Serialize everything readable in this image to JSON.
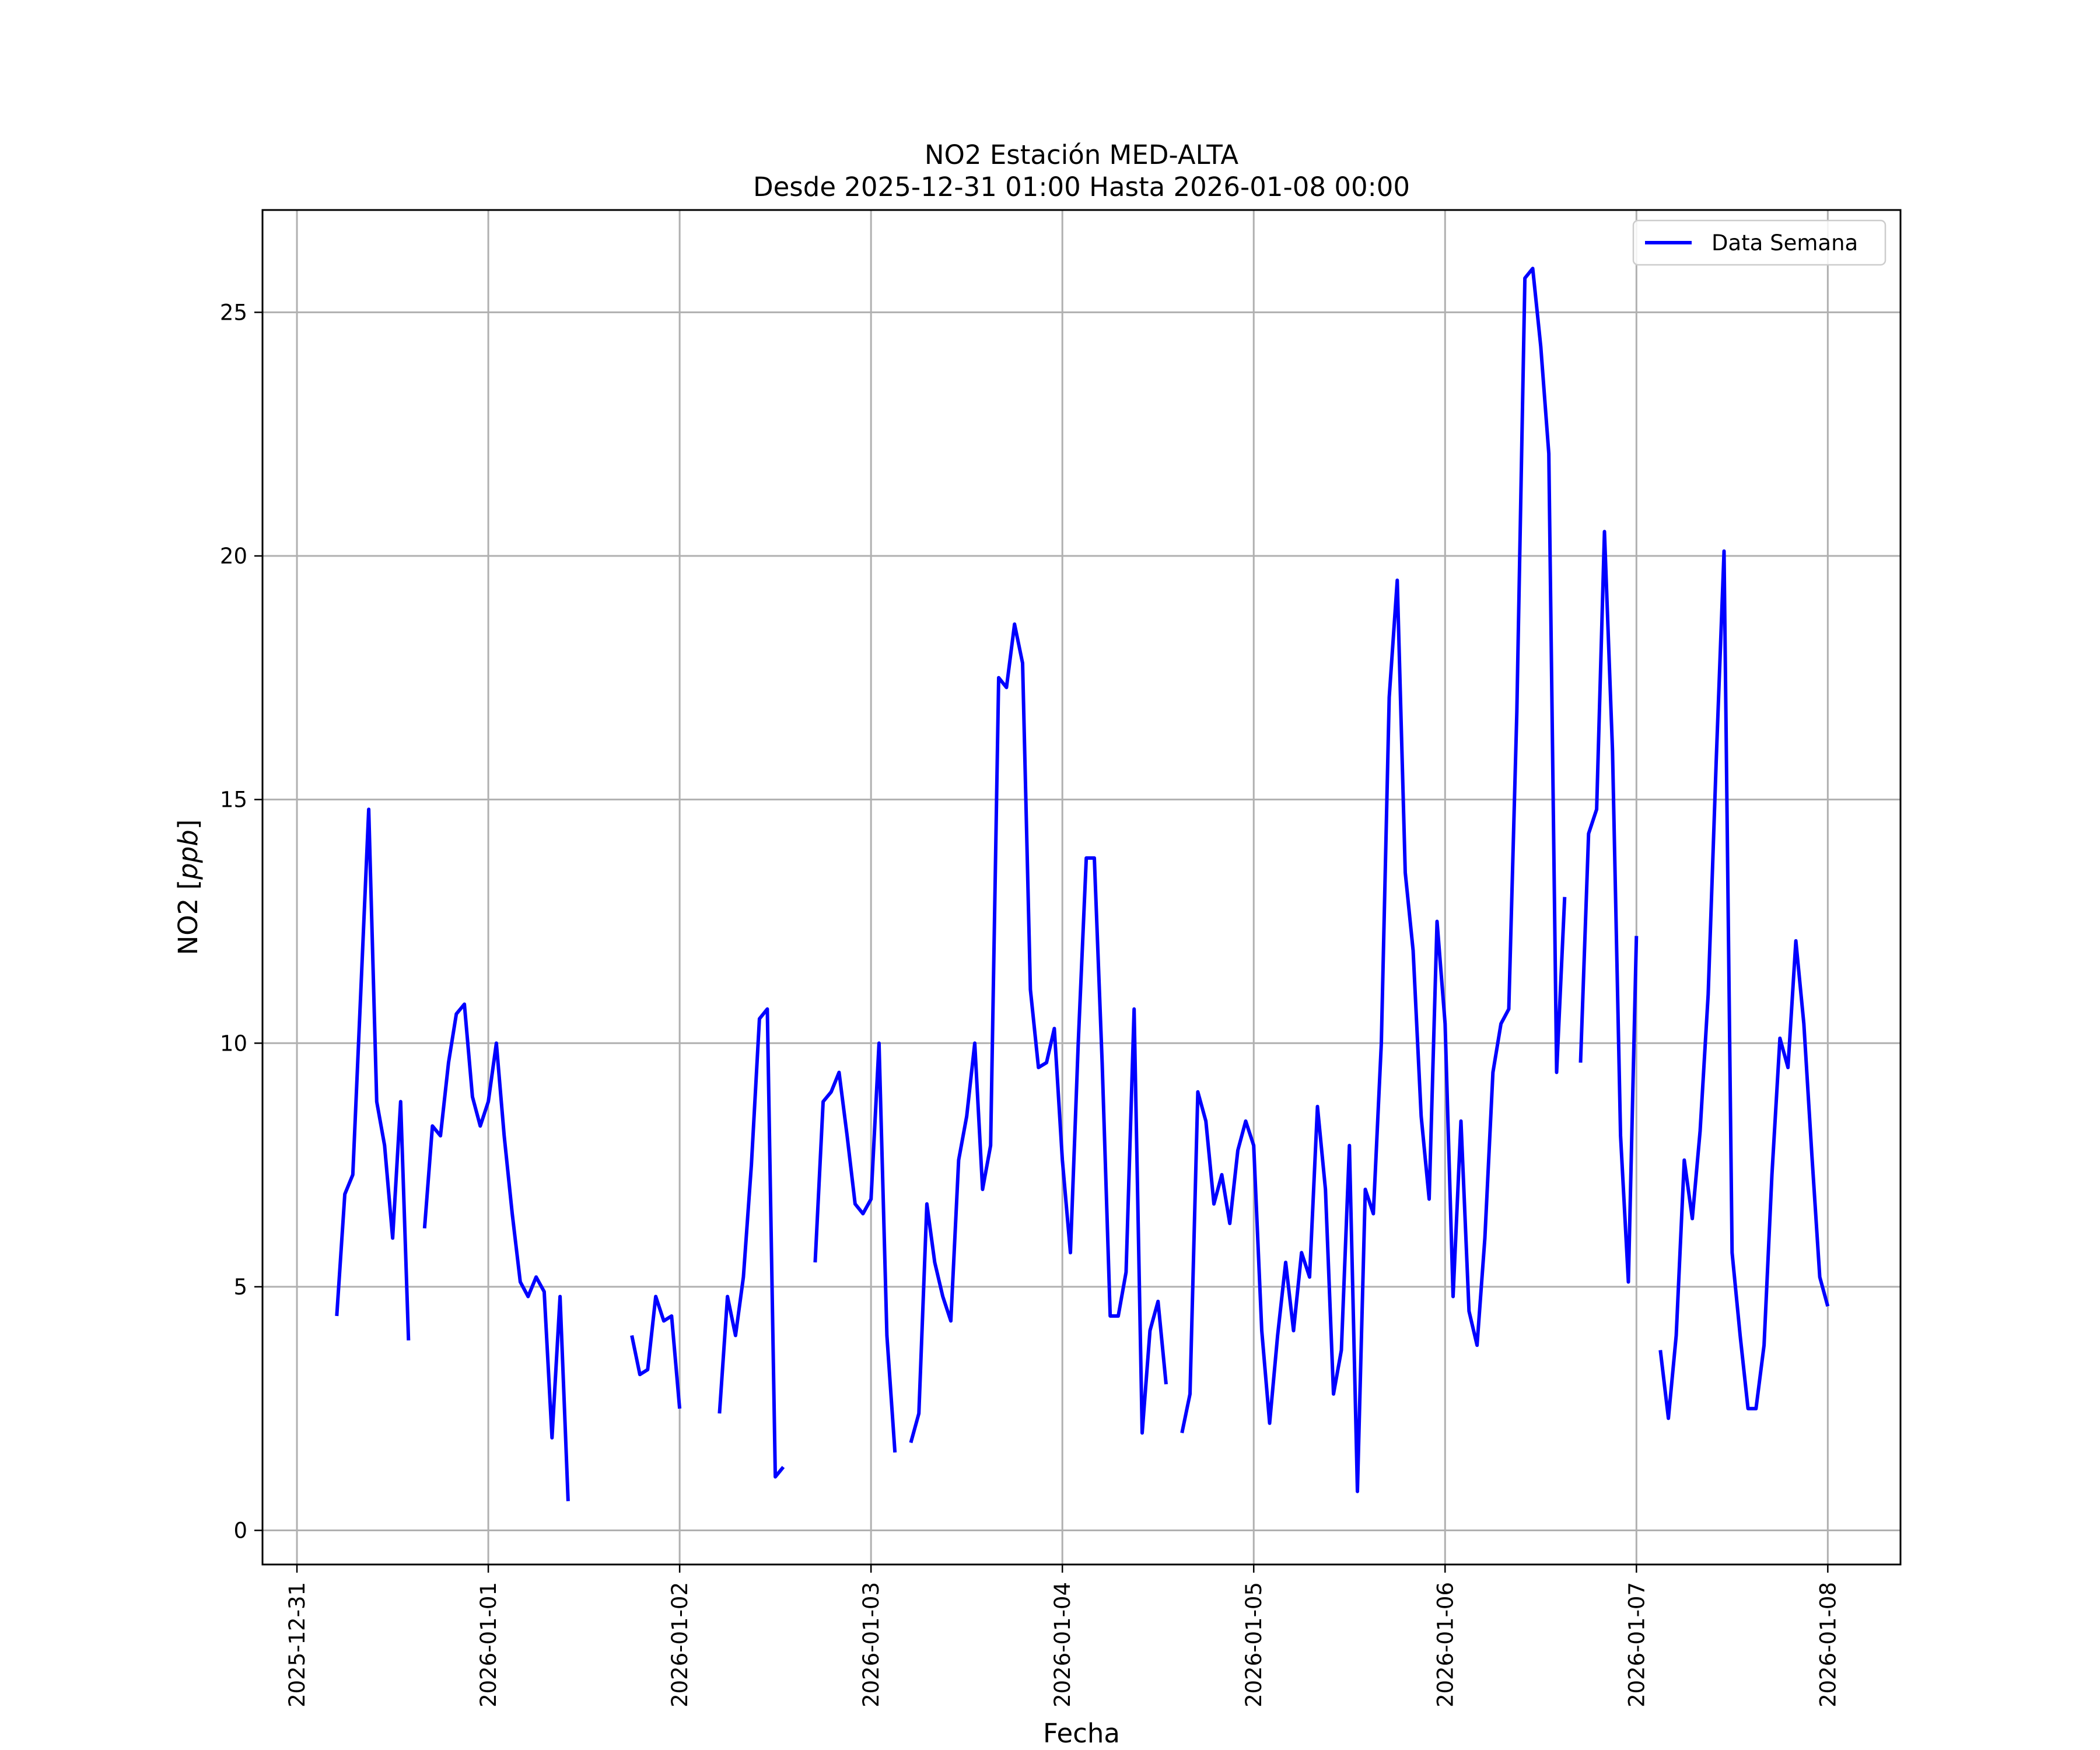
{
  "chart_data": {
    "type": "line",
    "title": "NO2 Estación MED-ALTA",
    "subtitle": "Desde 2025-12-31 01:00 Hasta 2026-01-08 00:00",
    "xlabel": "Fecha",
    "ylabel": "NO2 [ppb]",
    "ylabel_main": "NO2 [",
    "ylabel_unit": "ppb",
    "ylabel_close": "]",
    "x_unit": "days since 2025-12-31 00:00",
    "xlim": [
      -0.18,
      8.38
    ],
    "ylim": [
      -0.7,
      27.1
    ],
    "x_ticks": [
      {
        "value": 0,
        "label": "2025-12-31"
      },
      {
        "value": 1,
        "label": "2026-01-01"
      },
      {
        "value": 2,
        "label": "2026-01-02"
      },
      {
        "value": 3,
        "label": "2026-01-03"
      },
      {
        "value": 4,
        "label": "2026-01-04"
      },
      {
        "value": 5,
        "label": "2026-01-05"
      },
      {
        "value": 6,
        "label": "2026-01-06"
      },
      {
        "value": 7,
        "label": "2026-01-07"
      },
      {
        "value": 8,
        "label": "2026-01-08"
      }
    ],
    "y_ticks": [
      {
        "value": 0,
        "label": "0"
      },
      {
        "value": 5,
        "label": "5"
      },
      {
        "value": 10,
        "label": "10"
      },
      {
        "value": 15,
        "label": "15"
      },
      {
        "value": 20,
        "label": "20"
      },
      {
        "value": 25,
        "label": "25"
      }
    ],
    "grid": true,
    "legend": {
      "position": "top-right",
      "entries": [
        "Data Semana"
      ]
    },
    "series": [
      {
        "name": "Data Semana",
        "color": "#0000ff",
        "segments": [
          [
            [
              0.208,
              4.4
            ],
            [
              0.25,
              6.9
            ],
            [
              0.292,
              7.3
            ],
            [
              0.333,
              11.0
            ],
            [
              0.375,
              14.8
            ],
            [
              0.417,
              8.8
            ],
            [
              0.458,
              7.9
            ],
            [
              0.5,
              6.0
            ],
            [
              0.542,
              8.8
            ],
            [
              0.583,
              3.9
            ]
          ],
          [
            [
              0.667,
              6.2
            ],
            [
              0.708,
              8.3
            ],
            [
              0.75,
              8.1
            ],
            [
              0.792,
              9.6
            ],
            [
              0.833,
              10.6
            ],
            [
              0.875,
              10.8
            ],
            [
              0.917,
              8.9
            ],
            [
              0.958,
              8.3
            ],
            [
              1.0,
              8.8
            ],
            [
              1.042,
              10.0
            ],
            [
              1.083,
              8.1
            ],
            [
              1.125,
              6.5
            ],
            [
              1.167,
              5.1
            ],
            [
              1.208,
              4.8
            ],
            [
              1.25,
              5.2
            ],
            [
              1.292,
              4.9
            ],
            [
              1.333,
              1.9
            ],
            [
              1.375,
              4.8
            ],
            [
              1.417,
              0.6
            ]
          ],
          [
            [
              1.75,
              4.0
            ],
            [
              1.792,
              3.2
            ],
            [
              1.833,
              3.3
            ],
            [
              1.875,
              4.8
            ],
            [
              1.917,
              4.3
            ],
            [
              1.958,
              4.4
            ],
            [
              2.0,
              2.5
            ]
          ],
          [
            [
              2.208,
              2.4
            ],
            [
              2.25,
              4.8
            ],
            [
              2.292,
              4.0
            ],
            [
              2.333,
              5.2
            ],
            [
              2.375,
              7.5
            ],
            [
              2.417,
              10.5
            ],
            [
              2.458,
              10.7
            ],
            [
              2.5,
              1.1
            ],
            [
              2.542,
              1.3
            ]
          ],
          [
            [
              2.708,
              5.5
            ],
            [
              2.75,
              8.8
            ],
            [
              2.792,
              9.0
            ],
            [
              2.833,
              9.4
            ],
            [
              2.875,
              8.1
            ],
            [
              2.917,
              6.7
            ],
            [
              2.958,
              6.5
            ],
            [
              3.0,
              6.8
            ],
            [
              3.042,
              10.0
            ],
            [
              3.083,
              4.0
            ],
            [
              3.125,
              1.6
            ]
          ],
          [
            [
              3.208,
              1.8
            ],
            [
              3.25,
              2.4
            ],
            [
              3.292,
              6.7
            ],
            [
              3.333,
              5.5
            ],
            [
              3.375,
              4.8
            ],
            [
              3.417,
              4.3
            ],
            [
              3.458,
              7.6
            ],
            [
              3.5,
              8.5
            ],
            [
              3.542,
              10.0
            ],
            [
              3.583,
              7.0
            ],
            [
              3.625,
              7.9
            ],
            [
              3.667,
              17.5
            ],
            [
              3.708,
              17.3
            ],
            [
              3.75,
              18.6
            ],
            [
              3.792,
              17.8
            ],
            [
              3.833,
              11.1
            ],
            [
              3.875,
              9.5
            ],
            [
              3.917,
              9.6
            ],
            [
              3.958,
              10.3
            ],
            [
              4.0,
              7.6
            ],
            [
              4.042,
              5.7
            ],
            [
              4.083,
              10.0
            ],
            [
              4.125,
              13.8
            ],
            [
              4.167,
              13.8
            ],
            [
              4.208,
              9.6
            ],
            [
              4.25,
              4.4
            ],
            [
              4.292,
              4.4
            ],
            [
              4.333,
              5.3
            ],
            [
              4.375,
              10.7
            ],
            [
              4.417,
              2.0
            ],
            [
              4.458,
              4.1
            ],
            [
              4.5,
              4.7
            ],
            [
              4.542,
              3.0
            ]
          ],
          [
            [
              4.625,
              2.0
            ],
            [
              4.667,
              2.8
            ],
            [
              4.708,
              9.0
            ],
            [
              4.75,
              8.4
            ],
            [
              4.792,
              6.7
            ],
            [
              4.833,
              7.3
            ],
            [
              4.875,
              6.3
            ],
            [
              4.917,
              7.8
            ],
            [
              4.958,
              8.4
            ],
            [
              5.0,
              7.9
            ],
            [
              5.042,
              4.1
            ],
            [
              5.083,
              2.2
            ],
            [
              5.125,
              4.0
            ],
            [
              5.167,
              5.5
            ],
            [
              5.208,
              4.1
            ],
            [
              5.25,
              5.7
            ],
            [
              5.292,
              5.2
            ],
            [
              5.333,
              8.7
            ],
            [
              5.375,
              7.0
            ],
            [
              5.417,
              2.8
            ],
            [
              5.458,
              3.7
            ],
            [
              5.5,
              7.9
            ],
            [
              5.542,
              0.8
            ],
            [
              5.583,
              7.0
            ],
            [
              5.625,
              6.5
            ],
            [
              5.667,
              10.0
            ],
            [
              5.708,
              17.1
            ],
            [
              5.75,
              19.5
            ],
            [
              5.792,
              13.5
            ],
            [
              5.833,
              11.9
            ],
            [
              5.875,
              8.5
            ],
            [
              5.917,
              6.8
            ],
            [
              5.958,
              12.5
            ],
            [
              6.0,
              10.4
            ],
            [
              6.042,
              4.8
            ],
            [
              6.083,
              8.4
            ],
            [
              6.125,
              4.5
            ],
            [
              6.167,
              3.8
            ],
            [
              6.208,
              6.0
            ],
            [
              6.25,
              9.4
            ],
            [
              6.292,
              10.4
            ],
            [
              6.333,
              10.7
            ],
            [
              6.375,
              16.8
            ],
            [
              6.417,
              25.7
            ],
            [
              6.458,
              25.9
            ],
            [
              6.5,
              24.3
            ],
            [
              6.542,
              22.1
            ],
            [
              6.583,
              9.4
            ],
            [
              6.625,
              13.0
            ]
          ],
          [
            [
              6.708,
              9.6
            ],
            [
              6.75,
              14.3
            ],
            [
              6.792,
              14.8
            ],
            [
              6.833,
              20.5
            ],
            [
              6.875,
              16.0
            ],
            [
              6.917,
              8.1
            ],
            [
              6.958,
              5.1
            ],
            [
              7.0,
              12.2
            ]
          ],
          [
            [
              7.125,
              3.7
            ],
            [
              7.167,
              2.3
            ],
            [
              7.208,
              4.0
            ],
            [
              7.25,
              7.6
            ],
            [
              7.292,
              6.4
            ],
            [
              7.333,
              8.2
            ],
            [
              7.375,
              11.0
            ],
            [
              7.417,
              15.8
            ],
            [
              7.458,
              20.1
            ],
            [
              7.5,
              5.7
            ],
            [
              7.542,
              4.0
            ],
            [
              7.583,
              2.5
            ],
            [
              7.625,
              2.5
            ],
            [
              7.667,
              3.8
            ],
            [
              7.708,
              7.3
            ],
            [
              7.75,
              10.1
            ],
            [
              7.792,
              9.5
            ],
            [
              7.833,
              12.1
            ],
            [
              7.875,
              10.4
            ],
            [
              7.917,
              7.7
            ],
            [
              7.958,
              5.2
            ],
            [
              8.0,
              4.6
            ]
          ]
        ]
      }
    ]
  }
}
